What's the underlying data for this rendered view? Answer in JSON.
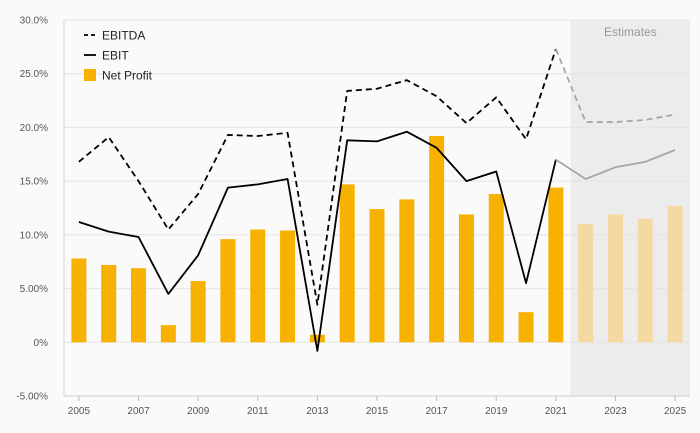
{
  "chart_data": {
    "type": "bar+line",
    "estimates_label": "Estimates",
    "estimate_from_year": 2022,
    "x": [
      2005,
      2006,
      2007,
      2008,
      2009,
      2010,
      2011,
      2012,
      2013,
      2014,
      2015,
      2016,
      2017,
      2018,
      2019,
      2020,
      2021,
      2022,
      2023,
      2024,
      2025
    ],
    "x_tick_labels": [
      "2005",
      "2007",
      "2009",
      "2011",
      "2013",
      "2015",
      "2017",
      "2019",
      "2021",
      "2023",
      "2025"
    ],
    "x_tick_values": [
      2005,
      2007,
      2009,
      2011,
      2013,
      2015,
      2017,
      2019,
      2021,
      2023,
      2025
    ],
    "y_tick_labels": [
      "30.0%",
      "25.0%",
      "20.0%",
      "15.0%",
      "10.0%",
      "5.00%",
      "0%",
      "-5.00%"
    ],
    "y_tick_values": [
      30,
      25,
      20,
      15,
      10,
      5,
      0,
      -5
    ],
    "ylim": [
      -5,
      30
    ],
    "legend_position": "top-left",
    "grid": true,
    "series": [
      {
        "name": "EBITDA",
        "kind": "line",
        "style": "dashed",
        "color": "#000000",
        "estimate_color": "#a6a6a6",
        "values": [
          16.8,
          19.1,
          15.0,
          10.5,
          13.8,
          19.3,
          19.2,
          19.5,
          3.5,
          23.4,
          23.6,
          24.4,
          22.9,
          20.4,
          22.8,
          18.9,
          27.3,
          20.5,
          20.5,
          20.7,
          21.2
        ]
      },
      {
        "name": "EBIT",
        "kind": "line",
        "style": "solid",
        "color": "#000000",
        "estimate_color": "#a6a6a6",
        "values": [
          11.2,
          10.3,
          9.8,
          4.5,
          8.1,
          14.4,
          14.7,
          15.2,
          -0.8,
          18.8,
          18.7,
          19.6,
          18.1,
          15.0,
          15.9,
          5.5,
          17.0,
          15.2,
          16.3,
          16.8,
          17.9
        ]
      },
      {
        "name": "Net Profit",
        "kind": "bar",
        "color": "#f7b100",
        "estimate_color": "#f5d9a3",
        "values": [
          7.8,
          7.2,
          6.9,
          1.6,
          5.7,
          9.6,
          10.5,
          10.4,
          0.7,
          14.7,
          12.4,
          13.3,
          19.2,
          11.9,
          13.8,
          2.8,
          14.4,
          11.0,
          11.9,
          11.5,
          12.7
        ]
      }
    ]
  }
}
